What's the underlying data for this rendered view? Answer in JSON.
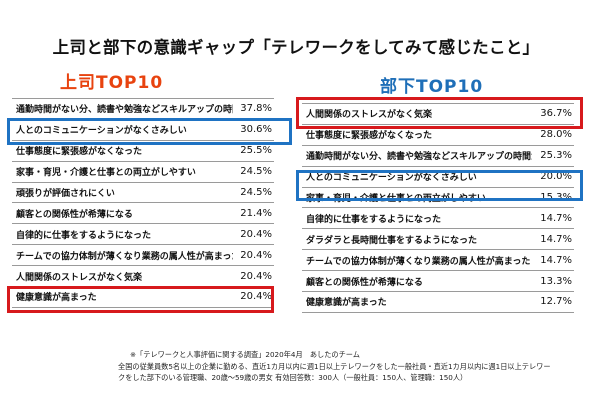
{
  "title": "上司と部下の意識ギャップ「テレワークをしてみて感じたこと」",
  "boss_title": "上司TOP10",
  "sub_title": "部下TOP10",
  "boss_rows": [
    {
      "label": "通勤時間がない分、読書や勉強などスキルアップの時間が持てる",
      "value": "37.8%"
    },
    {
      "label": "人とのコミュニケーションがなくさみしい",
      "value": "30.6%"
    },
    {
      "label": "仕事態度に緊張感がなくなった",
      "value": "25.5%"
    },
    {
      "label": "家事・育児・介護と仕事との両立がしやすい",
      "value": "24.5%"
    },
    {
      "label": "頑張りが評価されにくい",
      "value": "24.5%"
    },
    {
      "label": "顧客との関係性が希薄になる",
      "value": "21.4%"
    },
    {
      "label": "自律的に仕事をするようになった",
      "value": "20.4%"
    },
    {
      "label": "チームでの協力体制が薄くなり業務の属人性が高まった",
      "value": "20.4%"
    },
    {
      "label": "人間関係のストレスがなく気楽",
      "value": "20.4%"
    },
    {
      "label": "健康意識が高まった",
      "value": "20.4%"
    }
  ],
  "sub_rows": [
    {
      "label": "人間関係のストレスがなく気楽",
      "value": "36.7%"
    },
    {
      "label": "仕事態度に緊張感がなくなった",
      "value": "28.0%"
    },
    {
      "label": "通勤時間がない分、読書や勉強などスキルアップの時間が持てる",
      "value": "25.3%"
    },
    {
      "label": "人とのコミュニケーションがなくさみしい",
      "value": "20.0%"
    },
    {
      "label": "家事・育児・介護と仕事との両立がしやすい",
      "value": "15.3%"
    },
    {
      "label": "自律的に仕事をするようになった",
      "value": "14.7%"
    },
    {
      "label": "ダラダラと長時間仕事をするようになった",
      "value": "14.7%"
    },
    {
      "label": "チームでの協力体制が薄くなり業務の属人性が高まった",
      "value": "14.7%"
    },
    {
      "label": "顧客との関係性が希薄になる",
      "value": "13.3%"
    },
    {
      "label": "健康意識が高まった",
      "value": "12.7%"
    }
  ],
  "footnote1": "※「テレワークと人事評価に関する調査」2020年4月　あしたのチーム",
  "footnote2": "全国の従業員数5名以上の企業に勤める、直近1カ月以内に週1日以上テレワークをした一般社員・直近1カ月以内に週1日以上テレワー",
  "footnote3": "クをした部下のいる管理職、20歳〜59歳の男女 有効回答数：300人（一般社員：150人、管理職：150人）",
  "highlight_colors": {
    "red": "#d7191c",
    "blue": "#1f73c3"
  },
  "chart_data": [
    {
      "type": "table",
      "title": "上司TOP10",
      "categories": [
        "通勤時間がない分、読書や勉強などスキルアップの時間が持てる",
        "人とのコミュニケーションがなくさみしい",
        "仕事態度に緊張感がなくなった",
        "家事・育児・介護と仕事との両立がしやすい",
        "頑張りが評価されにくい",
        "顧客との関係性が希薄になる",
        "自律的に仕事をするようになった",
        "チームでの協力体制が薄くなり業務の属人性が高まった",
        "人間関係のストレスがなく気楽",
        "健康意識が高まった"
      ],
      "values": [
        37.8,
        30.6,
        25.5,
        24.5,
        24.5,
        21.4,
        20.4,
        20.4,
        20.4,
        20.4
      ]
    },
    {
      "type": "table",
      "title": "部下TOP10",
      "categories": [
        "人間関係のストレスがなく気楽",
        "仕事態度に緊張感がなくなった",
        "通勤時間がない分、読書や勉強などスキルアップの時間が持てる",
        "人とのコミュニケーションがなくさみしい",
        "家事・育児・介護と仕事との両立がしやすい",
        "自律的に仕事をするようになった",
        "ダラダラと長時間仕事をするようになった",
        "チームでの協力体制が薄くなり業務の属人性が高まった",
        "顧客との関係性が希薄になる",
        "健康意識が高まった"
      ],
      "values": [
        36.7,
        28.0,
        25.3,
        20.0,
        15.3,
        14.7,
        14.7,
        14.7,
        13.3,
        12.7
      ]
    }
  ]
}
